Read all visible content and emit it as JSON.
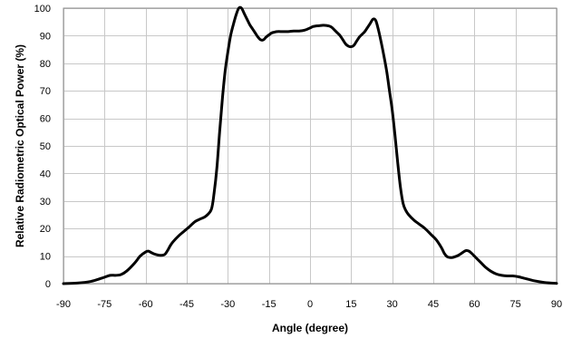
{
  "chart_data": {
    "type": "line",
    "title": "",
    "xlabel": "Angle (degree)",
    "ylabel": "Relative Radiometric Optical Power (%)",
    "xlim": [
      -90,
      90
    ],
    "ylim": [
      0,
      100
    ],
    "xticks": [
      -90,
      -75,
      -60,
      -45,
      -30,
      -15,
      0,
      15,
      30,
      45,
      60,
      75,
      90
    ],
    "yticks": [
      0,
      10,
      20,
      30,
      40,
      50,
      60,
      70,
      80,
      90,
      100
    ],
    "grid": true,
    "legend": "none",
    "series": [
      {
        "color": "#000000",
        "x": [
          -90,
          -85,
          -80,
          -76,
          -73,
          -71,
          -69,
          -67,
          -64,
          -62,
          -60,
          -59,
          -58,
          -57,
          -56,
          -55,
          -54,
          -53,
          -52,
          -51,
          -50,
          -48,
          -46,
          -44,
          -42,
          -40,
          -38,
          -36,
          -35,
          -34,
          -33,
          -32,
          -31,
          -30,
          -29,
          -28,
          -27,
          -26,
          -25,
          -24,
          -23,
          -22,
          -21,
          -20,
          -19,
          -18,
          -17,
          -16,
          -15,
          -14,
          -13,
          -12,
          -10,
          -8,
          -6,
          -4,
          -2,
          0,
          1,
          2,
          3,
          4,
          5,
          6,
          7,
          8,
          9,
          10,
          11,
          12,
          13,
          14,
          15,
          16,
          17,
          18,
          19,
          20,
          21,
          22,
          23,
          24,
          25,
          26,
          27,
          28,
          29,
          30,
          31,
          32,
          33,
          34,
          35,
          36,
          38,
          40,
          42,
          44,
          46,
          48,
          49,
          50,
          51,
          52,
          53,
          54,
          55,
          56,
          57,
          58,
          59,
          60,
          61,
          62,
          64,
          66,
          68,
          70,
          72,
          74,
          76,
          78,
          80,
          82,
          85,
          88,
          90
        ],
        "y": [
          0,
          0.2,
          0.8,
          2.0,
          3.0,
          3.0,
          3.3,
          4.5,
          7.5,
          10.0,
          11.5,
          11.8,
          11.3,
          10.8,
          10.5,
          10.3,
          10.3,
          10.6,
          12.0,
          13.8,
          15.2,
          17.3,
          19.0,
          20.7,
          22.5,
          23.5,
          24.5,
          27.0,
          33.0,
          42.0,
          55.0,
          67.0,
          77.0,
          84.0,
          90.0,
          94.0,
          97.5,
          100.0,
          100.0,
          98.0,
          96.0,
          94.0,
          92.5,
          91.0,
          89.5,
          88.5,
          88.5,
          89.5,
          90.3,
          91.0,
          91.3,
          91.5,
          91.5,
          91.5,
          91.7,
          91.7,
          92.0,
          92.8,
          93.3,
          93.5,
          93.6,
          93.7,
          93.8,
          93.7,
          93.5,
          93.0,
          92.0,
          91.0,
          90.0,
          88.5,
          87.0,
          86.2,
          86.0,
          86.5,
          88.0,
          89.5,
          90.5,
          91.5,
          93.0,
          94.5,
          96.0,
          95.5,
          92.0,
          87.5,
          82.5,
          77.0,
          70.0,
          63.0,
          54.0,
          44.0,
          35.0,
          29.0,
          26.5,
          25.0,
          23.0,
          21.5,
          20.0,
          18.0,
          16.0,
          13.0,
          11.0,
          9.8,
          9.5,
          9.5,
          9.8,
          10.2,
          10.8,
          11.5,
          12.0,
          11.8,
          11.0,
          10.0,
          9.0,
          8.0,
          6.0,
          4.5,
          3.5,
          3.0,
          2.8,
          2.8,
          2.5,
          2.0,
          1.5,
          1.0,
          0.5,
          0.2,
          0.1
        ]
      }
    ]
  }
}
